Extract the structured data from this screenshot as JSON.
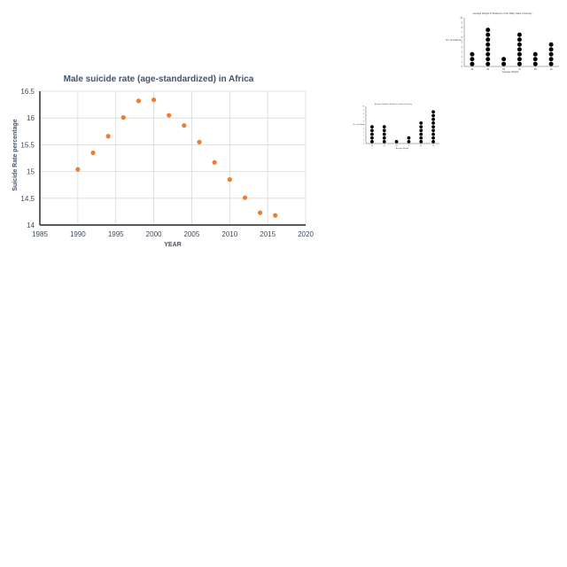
{
  "chart_data": [
    {
      "type": "scatter",
      "title": "Male suicide rate (age-standardized) in Africa",
      "xlabel": "YEAR",
      "ylabel": "Suicide Rate percentage",
      "xlim": [
        1985,
        2020
      ],
      "ylim": [
        14,
        16.5
      ],
      "xticks": [
        1985,
        1990,
        1995,
        2000,
        2005,
        2010,
        2015,
        2020
      ],
      "yticks": [
        14,
        14.5,
        15,
        15.5,
        16,
        16.5
      ],
      "ytick_labels": [
        "14",
        "14.5",
        "15",
        "15.5",
        "16",
        "16.5"
      ],
      "grid": true,
      "marker_color": "#ed7d31",
      "x": [
        1990,
        1992,
        1994,
        1996,
        1998,
        2000,
        2002,
        2004,
        2006,
        2008,
        2010,
        2012,
        2014,
        2016
      ],
      "y": [
        15.04,
        15.35,
        15.66,
        16.01,
        16.32,
        16.34,
        16.05,
        15.86,
        15.55,
        15.17,
        14.85,
        14.51,
        14.23,
        14.18
      ]
    },
    {
      "type": "dot_plot",
      "title": "Average Weight of Students in Fort Valley State University",
      "xlabel": "Average Weight",
      "ylabel": "No. of students",
      "ylim": [
        0,
        10
      ],
      "yticks": [
        0,
        1,
        2,
        3,
        4,
        5,
        6,
        7,
        8,
        9,
        10
      ],
      "categories": [
        "40",
        "50",
        "60",
        "70",
        "80",
        "90"
      ],
      "values": [
        3,
        8,
        2,
        7,
        3,
        5
      ],
      "marker_color": "#000000"
    },
    {
      "type": "dot_plot",
      "title": "Average Weight of Students in Some University",
      "xlabel": "Average Weight",
      "ylabel": "No. of students",
      "ylim": [
        0,
        10
      ],
      "yticks": [
        0,
        1,
        2,
        3,
        4,
        5,
        6,
        7,
        8,
        9,
        10
      ],
      "categories": [
        "40",
        "50",
        "60",
        "70",
        "80",
        "90"
      ],
      "values": [
        5,
        5,
        1,
        2,
        6,
        9
      ],
      "marker_color": "#000000"
    }
  ]
}
